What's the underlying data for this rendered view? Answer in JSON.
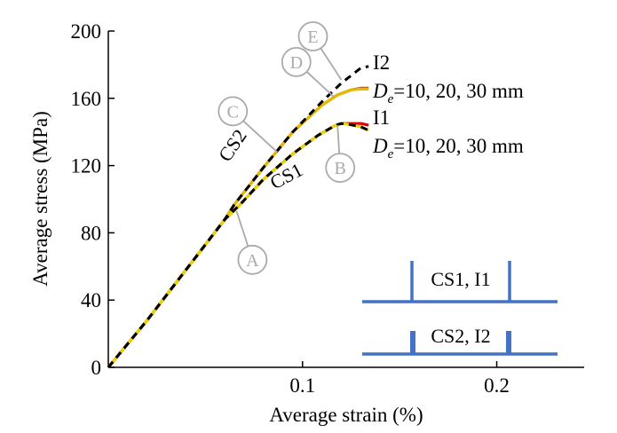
{
  "chart_data": {
    "type": "line",
    "title": "",
    "xlabel": "Average strain (%)",
    "ylabel": "Average stress (MPa)",
    "xlim": [
      0,
      0.245
    ],
    "ylim": [
      0,
      200
    ],
    "xticks": [
      0.1,
      0.2
    ],
    "xtick_labels": [
      "0.1",
      "0.2"
    ],
    "yticks": [
      0,
      40,
      80,
      120,
      160,
      200
    ],
    "ytick_labels": [
      "0",
      "40",
      "80",
      "120",
      "160",
      "200"
    ],
    "grid": false,
    "series": [
      {
        "name": "CS2 De=20 mm",
        "color": "#a0522d",
        "x": [
          0,
          0.02,
          0.04,
          0.06,
          0.065,
          0.08,
          0.095,
          0.11,
          0.118,
          0.125,
          0.13,
          0.134
        ],
        "y": [
          0,
          28,
          58,
          88,
          97,
          119,
          140,
          156,
          162,
          165,
          166,
          166
        ]
      },
      {
        "name": "CS2 De=10 mm",
        "color": "#e6b800",
        "x": [
          0,
          0.02,
          0.04,
          0.06,
          0.065,
          0.08,
          0.095,
          0.11,
          0.118,
          0.125,
          0.13,
          0.134
        ],
        "y": [
          0,
          28,
          58,
          88,
          97,
          119,
          140,
          156,
          162,
          165,
          165.5,
          165.5
        ]
      },
      {
        "name": "CS1 De=30 mm",
        "color": "#e00000",
        "x": [
          0,
          0.02,
          0.04,
          0.06,
          0.068,
          0.08,
          0.095,
          0.108,
          0.117,
          0.12,
          0.124,
          0.13,
          0.134
        ],
        "y": [
          0,
          28,
          58,
          88,
          97,
          112,
          127,
          138,
          144,
          145,
          145,
          145,
          144
        ]
      },
      {
        "name": "CS1 De=10 mm",
        "color": "#e6d700",
        "x": [
          0,
          0.02,
          0.04,
          0.06,
          0.068,
          0.08,
          0.095,
          0.108,
          0.117,
          0.12,
          0.124,
          0.13,
          0.134
        ],
        "y": [
          0,
          28,
          58,
          88,
          97,
          112,
          127,
          138,
          144,
          145,
          144.5,
          143,
          141
        ]
      },
      {
        "name": "I2",
        "color": "#000000",
        "dashed": true,
        "x": [
          0,
          0.02,
          0.04,
          0.06,
          0.065,
          0.08,
          0.095,
          0.11,
          0.12,
          0.13,
          0.134
        ],
        "y": [
          0,
          28,
          58,
          88,
          97,
          119,
          140,
          158,
          169,
          178,
          179
        ]
      },
      {
        "name": "I1",
        "color": "#000000",
        "dashed": true,
        "x": [
          0,
          0.02,
          0.04,
          0.06,
          0.068,
          0.08,
          0.095,
          0.108,
          0.117,
          0.12,
          0.124,
          0.13,
          0.134
        ],
        "y": [
          0,
          28,
          58,
          88,
          97,
          112,
          127,
          138,
          144,
          145,
          144.5,
          143,
          141
        ]
      }
    ],
    "annotations": {
      "curve_labels": [
        {
          "text": "CS2"
        },
        {
          "text": "CS1"
        }
      ],
      "right_labels": [
        {
          "text": "I2"
        },
        {
          "d": "D",
          "sub": "e",
          "rest": "=10, 20, 30 mm"
        },
        {
          "text": "I1"
        },
        {
          "d": "D",
          "sub": "e",
          "rest": "=10, 20, 30 mm"
        }
      ],
      "markers": [
        {
          "letter": "A",
          "x": 0.066,
          "y": 93
        },
        {
          "letter": "B",
          "x": 0.118,
          "y": 144
        },
        {
          "letter": "C",
          "x": 0.087,
          "y": 128
        },
        {
          "letter": "D",
          "x": 0.116,
          "y": 161
        },
        {
          "letter": "E",
          "x": 0.12,
          "y": 171
        }
      ]
    },
    "legend_panels": [
      {
        "label": "CS1, I1"
      },
      {
        "label": "CS2, I2"
      }
    ]
  }
}
